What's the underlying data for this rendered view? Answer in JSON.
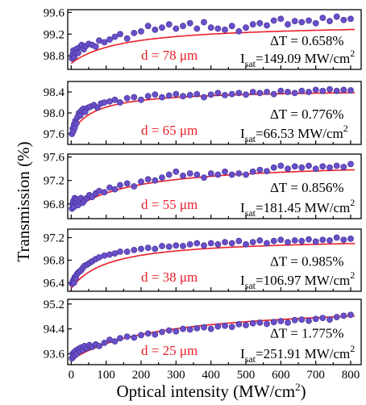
{
  "chart_data": {
    "type": "scatter",
    "xlabel_text": "Optical intensity (MW/cm",
    "xlabel_sup": "2",
    "xlabel_close": ")",
    "ylabel": "Transmission (%)",
    "x_ticks": [
      "0",
      "100",
      "200",
      "300",
      "400",
      "500",
      "600",
      "700",
      "800"
    ],
    "xlim": [
      -10,
      830
    ],
    "colors": {
      "points": "#6a4fc9",
      "points_edge": "#3e2a8f",
      "fit": "#e8202a",
      "thickness_label": "#e8202a",
      "axis": "#000000"
    },
    "panels": [
      {
        "thickness": "d = 78 μm",
        "delta_t": "ΔT = 0.658%",
        "isat_prefix": "I",
        "isat_sub": "sat",
        "isat_value": "=149.09 MW/cm",
        "isat_sup": "2",
        "ylim": [
          98.55,
          99.65
        ],
        "y_ticks": [
          "99.6",
          "99.2",
          "98.8"
        ],
        "y_tick_values": [
          99.6,
          99.2,
          98.8
        ],
        "fit": {
          "base": 98.66,
          "delta": 0.74,
          "isat": 149.09
        },
        "points": [
          [
            2,
            98.75
          ],
          [
            4,
            98.82
          ],
          [
            6,
            98.9
          ],
          [
            9,
            98.78
          ],
          [
            12,
            98.86
          ],
          [
            16,
            98.93
          ],
          [
            20,
            98.85
          ],
          [
            25,
            98.96
          ],
          [
            30,
            99.0
          ],
          [
            36,
            98.92
          ],
          [
            42,
            98.98
          ],
          [
            50,
            99.02
          ],
          [
            60,
            99.0
          ],
          [
            70,
            98.97
          ],
          [
            80,
            99.08
          ],
          [
            95,
            99.05
          ],
          [
            110,
            99.1
          ],
          [
            125,
            99.15
          ],
          [
            140,
            99.2
          ],
          [
            160,
            99.12
          ],
          [
            180,
            99.22
          ],
          [
            200,
            99.25
          ],
          [
            220,
            99.35
          ],
          [
            240,
            99.28
          ],
          [
            260,
            99.32
          ],
          [
            280,
            99.38
          ],
          [
            300,
            99.3
          ],
          [
            320,
            99.35
          ],
          [
            340,
            99.4
          ],
          [
            360,
            99.3
          ],
          [
            380,
            99.42
          ],
          [
            400,
            99.32
          ],
          [
            420,
            99.3
          ],
          [
            440,
            99.28
          ],
          [
            460,
            99.35
          ],
          [
            480,
            99.25
          ],
          [
            500,
            99.32
          ],
          [
            520,
            99.38
          ],
          [
            540,
            99.4
          ],
          [
            560,
            99.36
          ],
          [
            580,
            99.45
          ],
          [
            600,
            99.48
          ],
          [
            620,
            99.38
          ],
          [
            640,
            99.44
          ],
          [
            660,
            99.42
          ],
          [
            680,
            99.45
          ],
          [
            700,
            99.4
          ],
          [
            720,
            99.5
          ],
          [
            740,
            99.44
          ],
          [
            760,
            99.52
          ],
          [
            780,
            99.46
          ],
          [
            800,
            99.48
          ]
        ]
      },
      {
        "thickness": "d = 65 μm",
        "delta_t": "ΔT = 0.776%",
        "isat_prefix": "I",
        "isat_sub": "sat",
        "isat_value": "=66.53 MW/cm",
        "isat_sup": "2",
        "ylim": [
          97.4,
          98.6
        ],
        "y_ticks": [
          "98.4",
          "98.0",
          "97.6"
        ],
        "y_tick_values": [
          98.4,
          98.0,
          97.6
        ],
        "fit": {
          "base": 97.6,
          "delta": 0.85,
          "isat": 66.53
        },
        "points": [
          [
            2,
            97.6
          ],
          [
            4,
            97.7
          ],
          [
            6,
            97.65
          ],
          [
            8,
            97.78
          ],
          [
            10,
            97.72
          ],
          [
            12,
            97.85
          ],
          [
            15,
            97.8
          ],
          [
            18,
            97.92
          ],
          [
            22,
            98.0
          ],
          [
            26,
            97.95
          ],
          [
            30,
            98.05
          ],
          [
            35,
            98.08
          ],
          [
            40,
            98.02
          ],
          [
            48,
            98.1
          ],
          [
            55,
            98.12
          ],
          [
            65,
            98.15
          ],
          [
            75,
            98.1
          ],
          [
            85,
            98.18
          ],
          [
            95,
            98.2
          ],
          [
            110,
            98.22
          ],
          [
            125,
            98.25
          ],
          [
            140,
            98.2
          ],
          [
            160,
            98.28
          ],
          [
            180,
            98.3
          ],
          [
            200,
            98.25
          ],
          [
            220,
            98.32
          ],
          [
            240,
            98.35
          ],
          [
            260,
            98.3
          ],
          [
            280,
            98.33
          ],
          [
            300,
            98.36
          ],
          [
            320,
            98.32
          ],
          [
            340,
            98.34
          ],
          [
            360,
            98.36
          ],
          [
            380,
            98.3
          ],
          [
            400,
            98.35
          ],
          [
            420,
            98.38
          ],
          [
            440,
            98.34
          ],
          [
            460,
            98.36
          ],
          [
            480,
            98.38
          ],
          [
            500,
            98.35
          ],
          [
            520,
            98.4
          ],
          [
            540,
            98.38
          ],
          [
            560,
            98.4
          ],
          [
            580,
            98.36
          ],
          [
            600,
            98.42
          ],
          [
            620,
            98.4
          ],
          [
            640,
            98.38
          ],
          [
            660,
            98.42
          ],
          [
            680,
            98.4
          ],
          [
            700,
            98.44
          ],
          [
            720,
            98.42
          ],
          [
            740,
            98.45
          ],
          [
            760,
            98.42
          ],
          [
            780,
            98.44
          ],
          [
            800,
            98.43
          ]
        ]
      },
      {
        "thickness": "d = 55 μm",
        "delta_t": "ΔT = 0.856%",
        "isat_prefix": "I",
        "isat_sub": "sat",
        "isat_value": "=181.45 MW/cm",
        "isat_sup": "2",
        "ylim": [
          96.55,
          97.65
        ],
        "y_ticks": [
          "97.6",
          "97.2",
          "96.8"
        ],
        "y_tick_values": [
          97.6,
          97.2,
          96.8
        ],
        "fit": {
          "base": 96.68,
          "delta": 0.86,
          "isat": 181.45
        },
        "points": [
          [
            2,
            96.72
          ],
          [
            4,
            96.8
          ],
          [
            6,
            96.85
          ],
          [
            8,
            96.75
          ],
          [
            10,
            96.9
          ],
          [
            13,
            96.82
          ],
          [
            16,
            96.88
          ],
          [
            20,
            96.78
          ],
          [
            24,
            96.85
          ],
          [
            28,
            96.9
          ],
          [
            33,
            96.82
          ],
          [
            38,
            96.86
          ],
          [
            45,
            96.9
          ],
          [
            52,
            96.95
          ],
          [
            60,
            96.92
          ],
          [
            70,
            96.98
          ],
          [
            80,
            97.02
          ],
          [
            95,
            97.0
          ],
          [
            110,
            97.08
          ],
          [
            125,
            97.05
          ],
          [
            140,
            97.12
          ],
          [
            160,
            97.15
          ],
          [
            180,
            97.1
          ],
          [
            200,
            97.18
          ],
          [
            220,
            97.22
          ],
          [
            240,
            97.2
          ],
          [
            260,
            97.25
          ],
          [
            280,
            97.3
          ],
          [
            300,
            97.35
          ],
          [
            320,
            97.28
          ],
          [
            340,
            97.32
          ],
          [
            360,
            97.3
          ],
          [
            380,
            97.25
          ],
          [
            400,
            97.32
          ],
          [
            420,
            97.3
          ],
          [
            440,
            97.35
          ],
          [
            460,
            97.3
          ],
          [
            480,
            97.32
          ],
          [
            500,
            97.3
          ],
          [
            520,
            97.35
          ],
          [
            540,
            97.38
          ],
          [
            560,
            97.36
          ],
          [
            580,
            97.42
          ],
          [
            600,
            97.45
          ],
          [
            620,
            97.4
          ],
          [
            640,
            97.44
          ],
          [
            660,
            97.42
          ],
          [
            680,
            97.45
          ],
          [
            700,
            97.4
          ],
          [
            720,
            97.44
          ],
          [
            740,
            97.42
          ],
          [
            760,
            97.45
          ],
          [
            780,
            97.43
          ],
          [
            800,
            97.48
          ]
        ]
      },
      {
        "thickness": "d = 38 μm",
        "delta_t": "ΔT = 0.985%",
        "isat_prefix": "I",
        "isat_sub": "sat",
        "isat_value": "=106.97 MW/cm",
        "isat_sup": "2",
        "ylim": [
          96.25,
          97.35
        ],
        "y_ticks": [
          "97.2",
          "96.8",
          "96.4"
        ],
        "y_tick_values": [
          97.2,
          96.8,
          96.4
        ],
        "fit": {
          "base": 96.3,
          "delta": 0.9,
          "isat": 106.97
        },
        "points": [
          [
            2,
            96.38
          ],
          [
            4,
            96.42
          ],
          [
            6,
            96.45
          ],
          [
            8,
            96.4
          ],
          [
            10,
            96.5
          ],
          [
            13,
            96.48
          ],
          [
            16,
            96.55
          ],
          [
            20,
            96.58
          ],
          [
            24,
            96.6
          ],
          [
            28,
            96.62
          ],
          [
            33,
            96.66
          ],
          [
            38,
            96.7
          ],
          [
            45,
            96.72
          ],
          [
            52,
            96.75
          ],
          [
            60,
            96.78
          ],
          [
            70,
            96.82
          ],
          [
            80,
            96.85
          ],
          [
            95,
            96.88
          ],
          [
            110,
            96.9
          ],
          [
            125,
            96.92
          ],
          [
            140,
            96.95
          ],
          [
            160,
            96.95
          ],
          [
            180,
            96.98
          ],
          [
            200,
            97.0
          ],
          [
            220,
            97.02
          ],
          [
            240,
            97.0
          ],
          [
            260,
            97.05
          ],
          [
            280,
            97.04
          ],
          [
            300,
            97.06
          ],
          [
            320,
            97.05
          ],
          [
            340,
            97.08
          ],
          [
            360,
            97.1
          ],
          [
            380,
            97.06
          ],
          [
            400,
            97.1
          ],
          [
            420,
            97.08
          ],
          [
            440,
            97.12
          ],
          [
            460,
            97.1
          ],
          [
            480,
            97.14
          ],
          [
            500,
            97.08
          ],
          [
            520,
            97.12
          ],
          [
            540,
            97.15
          ],
          [
            560,
            97.1
          ],
          [
            580,
            97.14
          ],
          [
            600,
            97.16
          ],
          [
            620,
            97.12
          ],
          [
            640,
            97.15
          ],
          [
            660,
            97.14
          ],
          [
            680,
            97.17
          ],
          [
            700,
            97.13
          ],
          [
            720,
            97.16
          ],
          [
            740,
            97.15
          ],
          [
            760,
            97.2
          ],
          [
            780,
            97.16
          ],
          [
            800,
            97.18
          ]
        ]
      },
      {
        "thickness": "d = 25 μm",
        "delta_t": "ΔT = 1.775%",
        "isat_prefix": "I",
        "isat_sub": "sat",
        "isat_value": "=251.91 MW/cm",
        "isat_sup": "2",
        "ylim": [
          93.25,
          95.35
        ],
        "y_ticks": [
          "95.2",
          "94.4",
          "93.6"
        ],
        "y_tick_values": [
          95.2,
          94.4,
          93.6
        ],
        "fit": {
          "base": 93.4,
          "delta": 1.85,
          "isat": 251.91
        },
        "points": [
          [
            2,
            93.45
          ],
          [
            4,
            93.6
          ],
          [
            6,
            93.5
          ],
          [
            8,
            93.65
          ],
          [
            10,
            93.55
          ],
          [
            13,
            93.7
          ],
          [
            16,
            93.6
          ],
          [
            20,
            93.75
          ],
          [
            24,
            93.68
          ],
          [
            28,
            93.8
          ],
          [
            33,
            93.72
          ],
          [
            38,
            93.85
          ],
          [
            45,
            93.78
          ],
          [
            52,
            93.88
          ],
          [
            60,
            93.82
          ],
          [
            70,
            93.9
          ],
          [
            80,
            93.85
          ],
          [
            95,
            93.95
          ],
          [
            110,
            94.05
          ],
          [
            125,
            94.0
          ],
          [
            140,
            94.1
          ],
          [
            160,
            94.15
          ],
          [
            180,
            94.12
          ],
          [
            200,
            94.2
          ],
          [
            220,
            94.25
          ],
          [
            240,
            94.22
          ],
          [
            260,
            94.3
          ],
          [
            280,
            94.35
          ],
          [
            300,
            94.32
          ],
          [
            320,
            94.4
          ],
          [
            340,
            94.38
          ],
          [
            360,
            94.42
          ],
          [
            380,
            94.45
          ],
          [
            400,
            94.4
          ],
          [
            420,
            94.48
          ],
          [
            440,
            94.5
          ],
          [
            460,
            94.46
          ],
          [
            480,
            94.55
          ],
          [
            500,
            94.52
          ],
          [
            520,
            94.58
          ],
          [
            540,
            94.6
          ],
          [
            560,
            94.56
          ],
          [
            580,
            94.62
          ],
          [
            600,
            94.65
          ],
          [
            620,
            94.6
          ],
          [
            640,
            94.68
          ],
          [
            660,
            94.7
          ],
          [
            680,
            94.66
          ],
          [
            700,
            94.72
          ],
          [
            720,
            94.75
          ],
          [
            740,
            94.7
          ],
          [
            760,
            94.78
          ],
          [
            780,
            94.82
          ],
          [
            800,
            94.85
          ]
        ]
      }
    ]
  }
}
